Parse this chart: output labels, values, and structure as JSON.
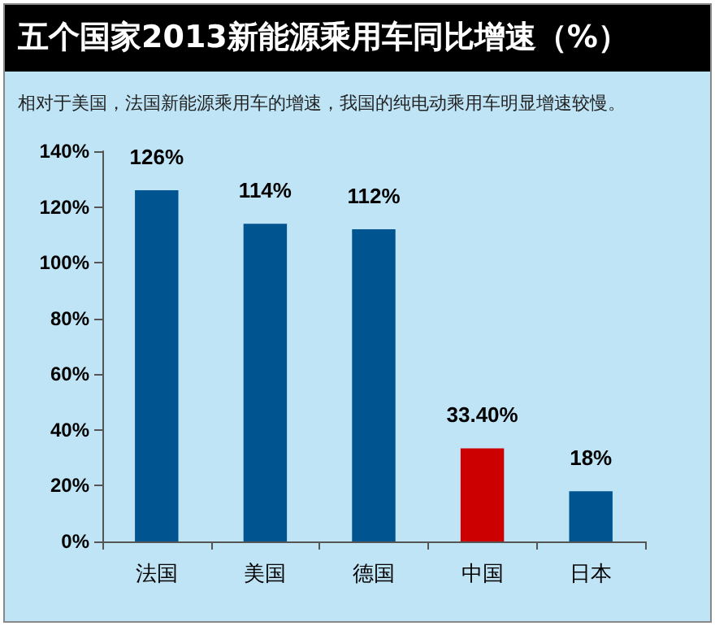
{
  "chart_data": {
    "type": "bar",
    "title": "五个国家2013新能源乘用车同比增速（%）",
    "subtitle": "相对于美国，法国新能源乘用车的增速，我国的纯电动乘用车明显增速较慢。",
    "categories": [
      "法国",
      "美国",
      "德国",
      "中国",
      "日本"
    ],
    "values": [
      126,
      114,
      112,
      33.4,
      18
    ],
    "colors": [
      "#005591",
      "#005591",
      "#005591",
      "#cc0000",
      "#005591"
    ],
    "value_labels": [
      "126%",
      "114%",
      "112%",
      "33.40%",
      "18%"
    ],
    "ylim": [
      0,
      140
    ],
    "yticks": [
      {
        "value": 0,
        "label": "0%"
      },
      {
        "value": 20,
        "label": "20%"
      },
      {
        "value": 40,
        "label": "40%"
      },
      {
        "value": 60,
        "label": "60%"
      },
      {
        "value": 80,
        "label": "80%"
      },
      {
        "value": 100,
        "label": "100%"
      },
      {
        "value": 120,
        "label": "120%"
      },
      {
        "value": 140,
        "label": "140%"
      }
    ],
    "grid": false
  }
}
